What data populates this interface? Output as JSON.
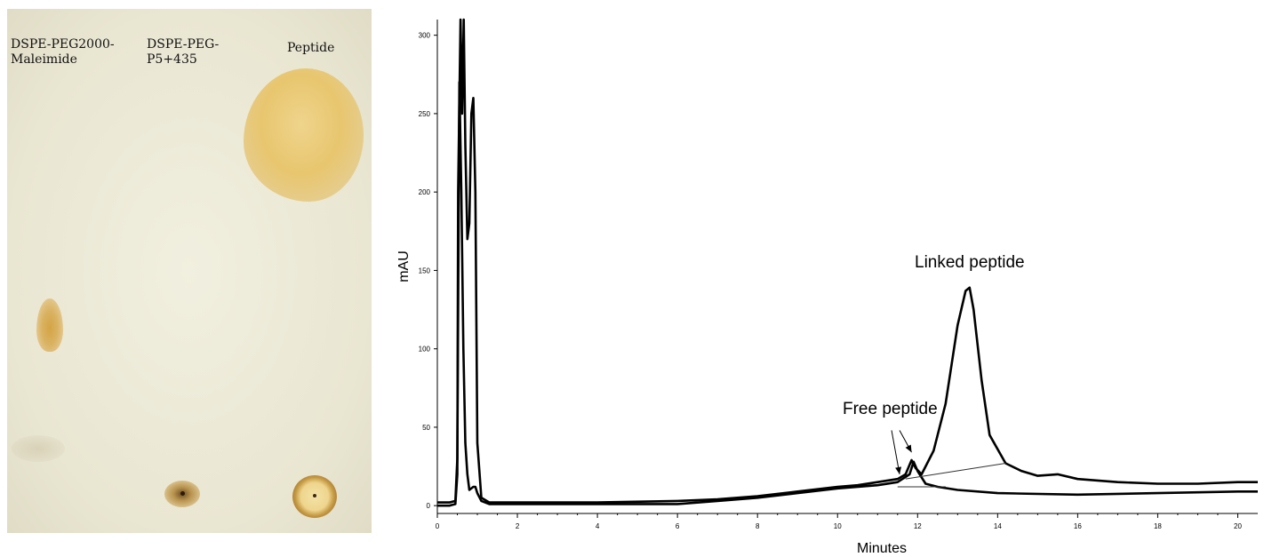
{
  "tlc": {
    "lane_labels": [
      "DSPE-PEG2000-\nMaleimide",
      "DSPE-PEG-\nP5+435",
      "Peptide"
    ]
  },
  "chart_data": {
    "type": "line",
    "xlabel": "Minutes",
    "ylabel": "mAU",
    "xlim": [
      0,
      20.5
    ],
    "ylim": [
      -5,
      310
    ],
    "x_ticks": [
      0,
      2,
      4,
      6,
      8,
      10,
      12,
      14,
      16,
      18,
      20
    ],
    "y_ticks": [
      0,
      50,
      100,
      150,
      200,
      250,
      300
    ],
    "grid": false,
    "legend": "none",
    "annotations": [
      "Free peptide",
      "Linked peptide"
    ],
    "series": [
      {
        "x": [
          0,
          0.3,
          0.45,
          0.5,
          0.52,
          0.58,
          0.62,
          0.66,
          0.7,
          0.75,
          0.8,
          0.85,
          0.9,
          0.95,
          1.0,
          1.1,
          1.3,
          2,
          4,
          6,
          7,
          8,
          9,
          10,
          10.5,
          11,
          11.5,
          11.7,
          11.85,
          11.95,
          12.1,
          12.4,
          12.7,
          13.0,
          13.2,
          13.3,
          13.4,
          13.6,
          13.8,
          14.2,
          14.6,
          15.0,
          15.5,
          16.0,
          17,
          18,
          19,
          20,
          20.5
        ],
        "y": [
          0,
          0,
          1,
          20,
          200,
          330,
          250,
          330,
          230,
          170,
          180,
          250,
          260,
          200,
          40,
          5,
          2,
          2,
          2,
          3,
          4,
          6,
          9,
          12,
          13,
          15,
          17,
          20,
          29,
          24,
          20,
          35,
          65,
          115,
          137,
          139,
          125,
          80,
          45,
          27,
          22,
          19,
          20,
          17,
          15,
          14,
          14,
          15,
          15
        ]
      },
      {
        "x": [
          0,
          0.3,
          0.45,
          0.5,
          0.55,
          0.6,
          0.65,
          0.7,
          0.75,
          0.8,
          0.9,
          0.95,
          1.0,
          1.1,
          1.3,
          2,
          4,
          6,
          7,
          8,
          9,
          10,
          11,
          11.5,
          11.8,
          11.9,
          12.0,
          12.2,
          12.5,
          13,
          14,
          16,
          18,
          20,
          20.5
        ],
        "y": [
          2,
          2,
          3,
          30,
          270,
          200,
          100,
          40,
          20,
          10,
          12,
          12,
          8,
          3,
          1,
          1,
          1,
          1,
          3,
          5,
          8,
          11,
          13,
          15,
          20,
          28,
          22,
          14,
          12,
          10,
          8,
          7,
          8,
          9,
          9
        ]
      }
    ]
  }
}
